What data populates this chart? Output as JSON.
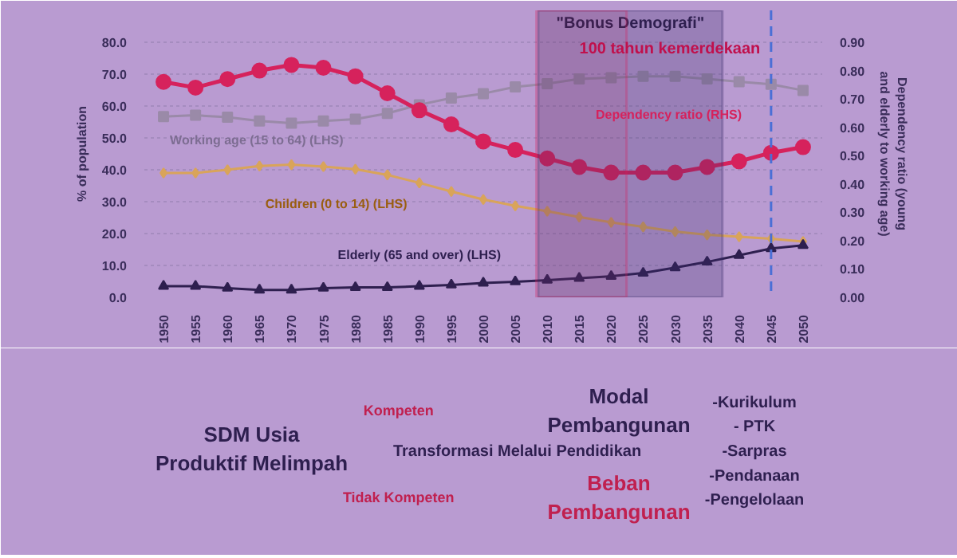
{
  "chart_data": {
    "type": "line",
    "ylabel": "% of population",
    "y2label": "Dependency ratio (young and elderly to working age)",
    "x": [
      1950,
      1955,
      1960,
      1965,
      1970,
      1975,
      1980,
      1985,
      1990,
      1995,
      2000,
      2005,
      2010,
      2015,
      2020,
      2025,
      2030,
      2035,
      2040,
      2045,
      2050
    ],
    "series": [
      {
        "color": "#9a8aa8",
        "marker": "square",
        "values": [
          56.7,
          57.1,
          56.5,
          55.3,
          54.6,
          55.3,
          55.9,
          57.7,
          60.4,
          62.5,
          63.9,
          66.0,
          67.0,
          68.5,
          68.9,
          69.3,
          69.3,
          68.5,
          67.6,
          66.8,
          64.9
        ]
      },
      {
        "color": "#d9a45a",
        "marker": "diamond",
        "values": [
          39.0,
          39.0,
          40.0,
          41.2,
          41.6,
          41.0,
          40.2,
          38.4,
          35.9,
          33.2,
          30.7,
          28.7,
          27.0,
          25.2,
          23.5,
          22.1,
          20.6,
          19.6,
          19.0,
          18.4,
          17.5
        ]
      },
      {
        "color": "#2e1f4f",
        "marker": "triangle",
        "values": [
          3.5,
          3.5,
          2.9,
          2.3,
          2.3,
          2.9,
          3.1,
          3.1,
          3.5,
          3.9,
          4.5,
          4.9,
          5.4,
          6.0,
          6.6,
          7.6,
          9.3,
          11.1,
          13.2,
          15.3,
          16.3
        ]
      },
      {
        "color": "#d6225c",
        "marker": "circle",
        "axis": "y2",
        "values": [
          0.76,
          0.74,
          0.77,
          0.8,
          0.82,
          0.81,
          0.78,
          0.72,
          0.66,
          0.61,
          0.55,
          0.52,
          0.49,
          0.46,
          0.44,
          0.44,
          0.44,
          0.46,
          0.48,
          0.51,
          0.53
        ]
      }
    ],
    "xlim": [
      1947,
      2053
    ],
    "xticks": [
      1950,
      1955,
      1960,
      1965,
      1970,
      1975,
      1980,
      1985,
      1990,
      1995,
      2000,
      2005,
      2010,
      2015,
      2020,
      2025,
      2030,
      2035,
      2040,
      2045,
      2050
    ],
    "ylim": [
      0,
      90
    ],
    "yticks": [
      {
        "value": 0,
        "label": "0.0"
      },
      {
        "value": 10,
        "label": "10.0"
      },
      {
        "value": 20,
        "label": "20.0"
      },
      {
        "value": 30,
        "label": "30.0"
      },
      {
        "value": 40,
        "label": "40.0"
      },
      {
        "value": 50,
        "label": "50.0"
      },
      {
        "value": 60,
        "label": "60.0"
      },
      {
        "value": 70,
        "label": "70.0"
      },
      {
        "value": 80,
        "label": "80.0"
      }
    ],
    "y2lim": [
      0,
      1.0125
    ],
    "y2ticks": [
      {
        "value": 0,
        "label": "0.00"
      },
      {
        "value": 0.1,
        "label": "0.10"
      },
      {
        "value": 0.2,
        "label": "0.20"
      },
      {
        "value": 0.3,
        "label": "0.30"
      },
      {
        "value": 0.4,
        "label": "0.40"
      },
      {
        "value": 0.5,
        "label": "0.50"
      },
      {
        "value": 0.6,
        "label": "0.60"
      },
      {
        "value": 0.7,
        "label": "0.70"
      },
      {
        "value": 0.8,
        "label": "0.80"
      },
      {
        "value": 0.9,
        "label": "0.90"
      }
    ],
    "grid": "y",
    "line_style": "solid",
    "bands": [
      {
        "axis": "x",
        "from": 2008.6,
        "to": 2037.4,
        "label": "\"Bonus Demografi\"",
        "color": "#3a2d6a"
      },
      {
        "axis": "x",
        "from": 2008.3,
        "to": 2022.4,
        "color": "#d6225c"
      }
    ],
    "ref_lines": [
      {
        "axis": "x",
        "value": 2045,
        "label": "100  tahun kemerdekaan",
        "color": "#4a6fd6",
        "line_style": "dashed"
      }
    ],
    "annotations": [
      "Working age (15 to 64) (LHS)",
      "Children (0 to 14) (LHS)",
      "Elderly (65 and over) (LHS)",
      "Dependency ratio (RHS)",
      "SDM Usia Produktif Melimpah",
      "Kompeten",
      "Modal Pembangunan",
      "Transformasi Melalui Pendidikan",
      "Tidak Kompeten",
      "Beban Pembangunan",
      "-Kurikulum",
      "- PTK",
      "-Sarpras",
      "-Pendanaan",
      "-Pengelolaan"
    ]
  }
}
